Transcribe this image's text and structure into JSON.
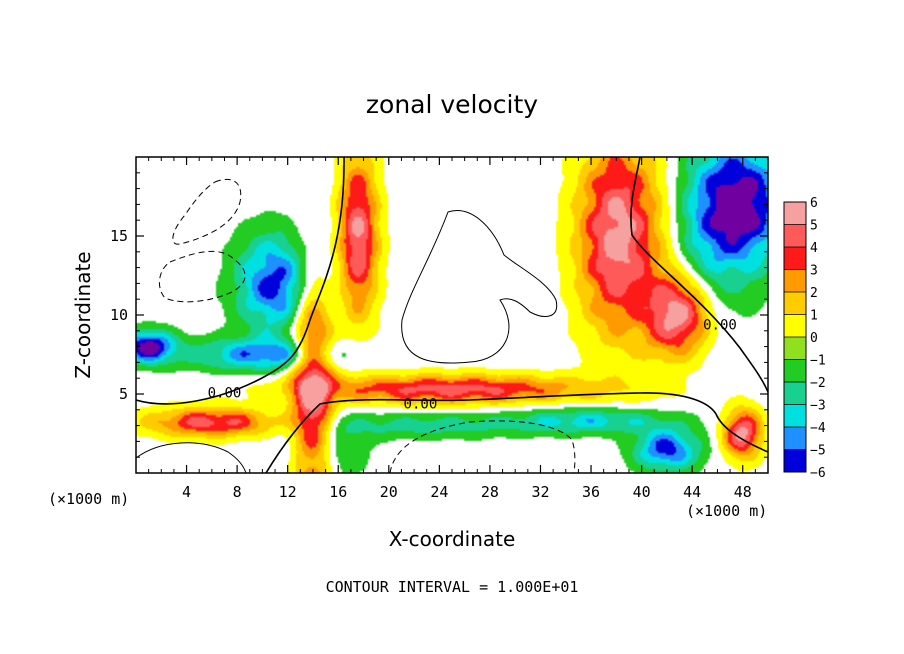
{
  "chart_data": {
    "type": "heatmap",
    "title": "zonal velocity",
    "xlabel": "X-coordinate",
    "ylabel": "Z-coordinate",
    "x_unit_label": "(×1000 m)",
    "x_unit_label_right": "(×1000 m)",
    "xlim": [
      0,
      50
    ],
    "ylim": [
      0,
      20
    ],
    "x_ticks": [
      4,
      8,
      12,
      16,
      20,
      24,
      28,
      32,
      36,
      40,
      44,
      48
    ],
    "y_ticks": [
      5,
      10,
      15
    ],
    "footer": "CONTOUR INTERVAL = 1.000E+01",
    "colorbar": {
      "ticks": [
        "6",
        "5",
        "4",
        "3",
        "2",
        "1",
        "0",
        "−1",
        "−2",
        "−3",
        "−4",
        "−5",
        "−6"
      ],
      "range": [
        -6,
        6
      ]
    },
    "contour_labels": [
      {
        "text": "0.00",
        "x": 7.0,
        "z": 5.1
      },
      {
        "text": "0.00",
        "x": 22.5,
        "z": 4.4
      },
      {
        "text": "0.00",
        "x": 46.2,
        "z": 9.4
      }
    ],
    "field_blobs": [
      {
        "x": 14,
        "z": 5,
        "sx": 1.6,
        "sy": 8,
        "v": 6
      },
      {
        "x": 17.5,
        "z": 15,
        "sx": 1.6,
        "sy": 5,
        "v": 6
      },
      {
        "x": 25,
        "z": 5.3,
        "sx": 11,
        "sy": 0.9,
        "v": 5
      },
      {
        "x": 6,
        "z": 3.2,
        "sx": 5,
        "sy": 0.9,
        "v": 5
      },
      {
        "x": 38,
        "z": 15,
        "sx": 3,
        "sy": 6,
        "v": 6
      },
      {
        "x": 43,
        "z": 10,
        "sx": 2.5,
        "sy": 2.5,
        "v": 6
      },
      {
        "x": 48,
        "z": 2.5,
        "sx": 1.5,
        "sy": 1.5,
        "v": 6
      },
      {
        "x": 15.5,
        "z": 14,
        "sx": 2,
        "sy": 5,
        "v": -1
      },
      {
        "x": 11,
        "z": 12,
        "sx": 3,
        "sy": 3,
        "v": -5
      },
      {
        "x": 10,
        "z": 7.5,
        "sx": 6,
        "sy": 1,
        "v": -4
      },
      {
        "x": 1,
        "z": 8,
        "sx": 2,
        "sy": 1,
        "v": -6
      },
      {
        "x": 15,
        "z": 1.5,
        "sx": 3,
        "sy": 2,
        "v": -2
      },
      {
        "x": 23,
        "z": 3,
        "sx": 8,
        "sy": 0.8,
        "v": -2
      },
      {
        "x": 36,
        "z": 3.3,
        "sx": 6,
        "sy": 0.8,
        "v": -3
      },
      {
        "x": 42,
        "z": 1.5,
        "sx": 2.5,
        "sy": 1.3,
        "v": -5
      },
      {
        "x": 48,
        "z": 17,
        "sx": 3.5,
        "sy": 4,
        "v": -6
      },
      {
        "x": 45,
        "z": 15,
        "sx": 3,
        "sy": 6,
        "v": -2
      },
      {
        "x": 41.5,
        "z": 14,
        "sx": 2.5,
        "sy": 7,
        "v": 1
      }
    ]
  }
}
